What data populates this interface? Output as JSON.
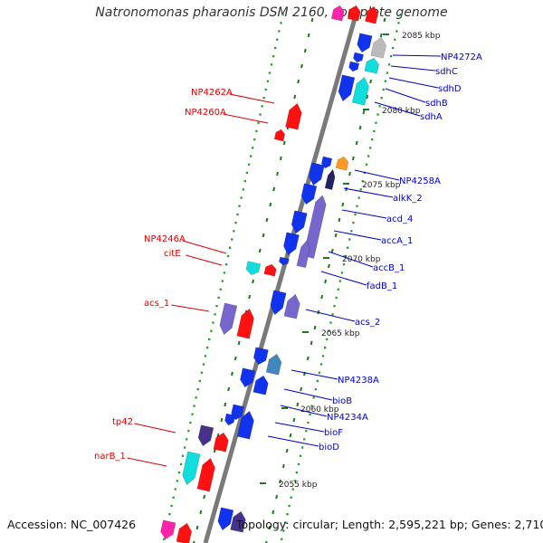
{
  "title": "Natronomonas pharaonis DSM 2160, complete genome",
  "accession": "Accession: NC_007426",
  "topology": "Topology: circular; Length: 2,595,221 bp; Genes: 2,710",
  "colors": {
    "backbone": "#7a7a7a",
    "tick": "#1a7a1a",
    "dot": "#2a9a2a",
    "label_reverse": "#dd0000",
    "label_forward": "#0000cc",
    "gene_red": "#ff1111",
    "gene_blue": "#1133ee",
    "gene_cyan": "#11dddd",
    "gene_lavender": "#7766cc",
    "gene_darkpurple": "#443388",
    "gene_grey": "#bbbbbb",
    "gene_orange": "#ff9922",
    "gene_steel": "#4488bb",
    "gene_navy": "#222266",
    "gene_pink": "#ff22aa"
  },
  "scale_labels": [
    "2085 kbp",
    "2080 kbp",
    "2075 kbp",
    "2070 kbp",
    "2065 kbp",
    "2060 kbp",
    "2055 kbp"
  ],
  "left_labels": [
    "NP4262A",
    "NP4260A",
    "NP4246A",
    "citE",
    "acs_1",
    "tp42",
    "narB_1"
  ],
  "right_labels": [
    "NP4272A",
    "sdhC",
    "sdhD",
    "sdhB",
    "sdhA",
    "NP4258A",
    "alkK_2",
    "acd_4",
    "accA_1",
    "accB_1",
    "fadB_1",
    "acs_2",
    "NP4238A",
    "bioB",
    "NP4234A",
    "bioF",
    "bioD"
  ]
}
